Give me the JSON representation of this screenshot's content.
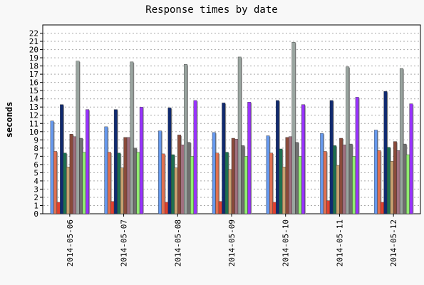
{
  "chart_data": {
    "type": "bar",
    "title": "Response times by date",
    "xlabel": "",
    "ylabel": "seconds",
    "ylim": [
      0,
      23
    ],
    "yticks": [
      0,
      1,
      2,
      3,
      4,
      5,
      6,
      7,
      8,
      9,
      10,
      11,
      12,
      13,
      14,
      15,
      16,
      17,
      18,
      19,
      20,
      21,
      22
    ],
    "grid": true,
    "categories": [
      "2014-05-06",
      "2014-05-07",
      "2014-05-08",
      "2014-05-09",
      "2014-05-10",
      "2014-05-11",
      "2014-05-12"
    ],
    "series": [
      {
        "color": "#6699ee",
        "values": [
          11.3,
          10.6,
          10.1,
          9.9,
          9.5,
          9.8,
          10.2
        ]
      },
      {
        "color": "#e07050",
        "values": [
          7.6,
          7.5,
          7.3,
          7.4,
          7.4,
          7.6,
          7.7
        ]
      },
      {
        "color": "#e04030",
        "values": [
          1.4,
          1.5,
          1.4,
          1.5,
          1.4,
          1.6,
          1.4
        ]
      },
      {
        "color": "#102a70",
        "values": [
          13.3,
          12.7,
          12.9,
          13.5,
          13.8,
          13.8,
          14.9
        ]
      },
      {
        "color": "#1d7050",
        "values": [
          7.4,
          7.4,
          7.2,
          7.5,
          7.9,
          8.3,
          8.1
        ]
      },
      {
        "color": "#c8a070",
        "values": [
          5.7,
          5.6,
          5.6,
          5.4,
          5.7,
          5.9,
          6.4
        ]
      },
      {
        "color": "#8a4a3a",
        "values": [
          9.7,
          9.3,
          9.6,
          9.2,
          9.3,
          9.2,
          8.8
        ]
      },
      {
        "color": "#a07080",
        "values": [
          9.4,
          9.3,
          8.4,
          9.1,
          9.4,
          8.4,
          7.7
        ]
      },
      {
        "color": "#9aa5a0",
        "values": [
          18.6,
          18.5,
          18.2,
          19.1,
          20.9,
          17.9,
          17.7
        ]
      },
      {
        "color": "#707070",
        "values": [
          9.2,
          8.0,
          8.7,
          8.3,
          8.7,
          8.5,
          8.5
        ]
      },
      {
        "color": "#90ee70",
        "values": [
          7.5,
          7.5,
          7.0,
          7.0,
          7.0,
          7.0,
          7.2
        ]
      },
      {
        "color": "#9933ff",
        "values": [
          12.7,
          13.0,
          13.8,
          13.6,
          13.3,
          14.2,
          13.4
        ]
      }
    ]
  }
}
